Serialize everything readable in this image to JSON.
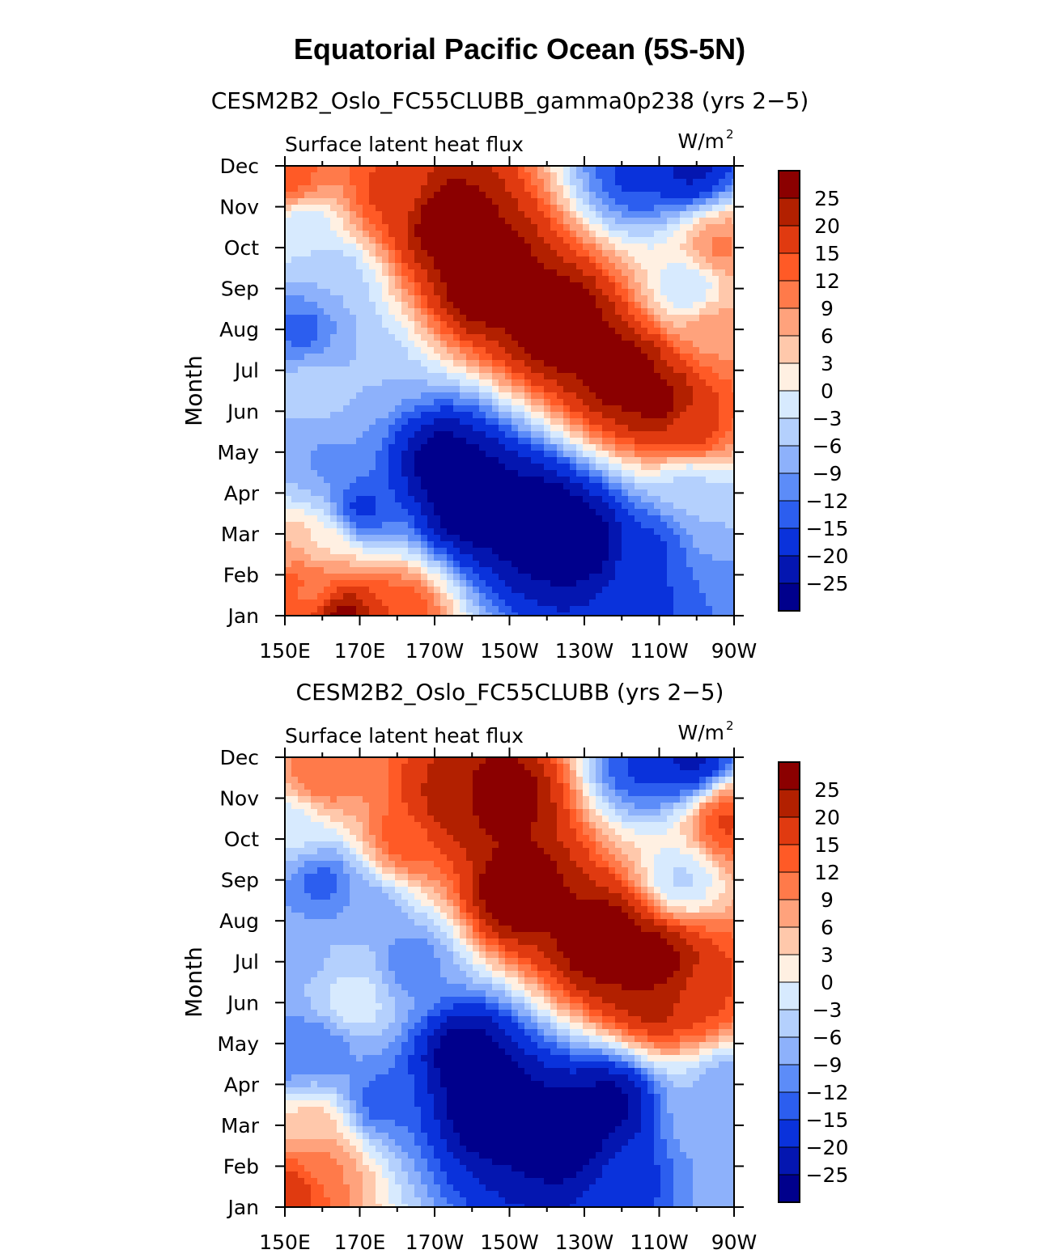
{
  "figure": {
    "title": "Equatorial Pacific Ocean (5S-5N)"
  },
  "colorbar": {
    "levels": [
      25,
      20,
      15,
      12,
      9,
      6,
      3,
      0,
      -3,
      -6,
      -9,
      -12,
      -15,
      -20,
      -25
    ],
    "colors": [
      "#8b0000",
      "#b22000",
      "#e03a10",
      "#ff5a26",
      "#ff7a4a",
      "#ffa27c",
      "#ffc8ab",
      "#fff0e2",
      "#d7eafe",
      "#b4d0fd",
      "#8db1fb",
      "#5c8cf8",
      "#2c5eef",
      "#0a32db",
      "#0416b0",
      "#00008c"
    ]
  },
  "chart_data": [
    {
      "type": "heatmap",
      "title": "CESM2B2_Oslo_FC55CLUBB_gamma0p238 (yrs 2−5)",
      "left_label": "Surface latent heat flux",
      "units": "W/m",
      "units_sup": "2",
      "ylabel": "Month",
      "xlabel": "",
      "x_ticks": [
        "150E",
        "170E",
        "170W",
        "150W",
        "130W",
        "110W",
        "90W"
      ],
      "y_ticks": [
        "Jan",
        "Feb",
        "Mar",
        "Apr",
        "May",
        "Jun",
        "Jul",
        "Aug",
        "Sep",
        "Oct",
        "Nov",
        "Dec"
      ],
      "x_range": [
        150,
        270
      ],
      "y_range": [
        1,
        12
      ],
      "features": [
        {
          "x": 165,
          "y": 1.0,
          "value": 30
        },
        {
          "x": 180,
          "y": 1.1,
          "value": 15
        },
        {
          "x": 153,
          "y": 1.9,
          "value": 14
        },
        {
          "x": 158,
          "y": 1.6,
          "value": 10
        },
        {
          "x": 152,
          "y": 2.6,
          "value": 6
        },
        {
          "x": 160,
          "y": 2.8,
          "value": 2
        },
        {
          "x": 200,
          "y": 3.8,
          "value": -34
        },
        {
          "x": 218,
          "y": 3.3,
          "value": -34
        },
        {
          "x": 230,
          "y": 2.8,
          "value": -32
        },
        {
          "x": 192,
          "y": 4.7,
          "value": -30
        },
        {
          "x": 170,
          "y": 3.6,
          "value": -17
        },
        {
          "x": 247,
          "y": 2.7,
          "value": -16
        },
        {
          "x": 245,
          "y": 1.2,
          "value": -17
        },
        {
          "x": 160,
          "y": 4.8,
          "value": -10
        },
        {
          "x": 150,
          "y": 4.8,
          "value": -7
        },
        {
          "x": 258,
          "y": 4.2,
          "value": -5
        },
        {
          "x": 268,
          "y": 3.3,
          "value": -6
        },
        {
          "x": 268,
          "y": 1.4,
          "value": -12
        },
        {
          "x": 204,
          "y": 9.2,
          "value": 34
        },
        {
          "x": 224,
          "y": 8.1,
          "value": 34
        },
        {
          "x": 240,
          "y": 6.9,
          "value": 32
        },
        {
          "x": 193,
          "y": 10.6,
          "value": 32
        },
        {
          "x": 250,
          "y": 6.2,
          "value": 28
        },
        {
          "x": 258,
          "y": 5.5,
          "value": 18
        },
        {
          "x": 178,
          "y": 11.3,
          "value": 16
        },
        {
          "x": 152,
          "y": 11.7,
          "value": 14
        },
        {
          "x": 264,
          "y": 8.0,
          "value": 8
        },
        {
          "x": 266,
          "y": 10.0,
          "value": 10
        },
        {
          "x": 258,
          "y": 9.0,
          "value": -4
        },
        {
          "x": 244,
          "y": 11.8,
          "value": -16
        },
        {
          "x": 258,
          "y": 12.0,
          "value": -22
        },
        {
          "x": 155,
          "y": 8.0,
          "value": -14
        },
        {
          "x": 163,
          "y": 9.2,
          "value": -6
        },
        {
          "x": 155,
          "y": 10.5,
          "value": -3
        },
        {
          "x": 158,
          "y": 6.6,
          "value": -4
        },
        {
          "x": 170,
          "y": 7.1,
          "value": -6
        }
      ]
    },
    {
      "type": "heatmap",
      "title": "CESM2B2_Oslo_FC55CLUBB (yrs 2−5)",
      "left_label": "Surface latent heat flux",
      "units": "W/m",
      "units_sup": "2",
      "ylabel": "Month",
      "xlabel": "",
      "x_ticks": [
        "150E",
        "170E",
        "170W",
        "150W",
        "130W",
        "110W",
        "90W"
      ],
      "y_ticks": [
        "Jan",
        "Feb",
        "Mar",
        "Apr",
        "May",
        "Jun",
        "Jul",
        "Aug",
        "Sep",
        "Oct",
        "Nov",
        "Dec"
      ],
      "x_range": [
        150,
        270
      ],
      "y_range": [
        1,
        12
      ],
      "features": [
        {
          "x": 153,
          "y": 1.5,
          "value": 18
        },
        {
          "x": 160,
          "y": 2.0,
          "value": 10
        },
        {
          "x": 158,
          "y": 3.0,
          "value": 5
        },
        {
          "x": 205,
          "y": 3.5,
          "value": -34
        },
        {
          "x": 225,
          "y": 2.8,
          "value": -32
        },
        {
          "x": 198,
          "y": 4.7,
          "value": -30
        },
        {
          "x": 237,
          "y": 3.5,
          "value": -28
        },
        {
          "x": 175,
          "y": 3.6,
          "value": -14
        },
        {
          "x": 160,
          "y": 4.9,
          "value": -12
        },
        {
          "x": 150,
          "y": 4.8,
          "value": -12
        },
        {
          "x": 245,
          "y": 1.6,
          "value": -16
        },
        {
          "x": 262,
          "y": 3.1,
          "value": -6
        },
        {
          "x": 268,
          "y": 4.0,
          "value": -8
        },
        {
          "x": 265,
          "y": 1.4,
          "value": -8
        },
        {
          "x": 212,
          "y": 8.7,
          "value": 34
        },
        {
          "x": 235,
          "y": 7.5,
          "value": 34
        },
        {
          "x": 248,
          "y": 6.9,
          "value": 32
        },
        {
          "x": 208,
          "y": 11.0,
          "value": 30
        },
        {
          "x": 195,
          "y": 10.9,
          "value": 24
        },
        {
          "x": 250,
          "y": 6.2,
          "value": 24
        },
        {
          "x": 260,
          "y": 6.0,
          "value": 16
        },
        {
          "x": 182,
          "y": 10.0,
          "value": 14
        },
        {
          "x": 160,
          "y": 11.5,
          "value": 12
        },
        {
          "x": 268,
          "y": 10.4,
          "value": 16
        },
        {
          "x": 256,
          "y": 9.0,
          "value": -4
        },
        {
          "x": 246,
          "y": 11.8,
          "value": -16
        },
        {
          "x": 258,
          "y": 12.0,
          "value": -22
        },
        {
          "x": 160,
          "y": 8.9,
          "value": -14
        },
        {
          "x": 183,
          "y": 7.0,
          "value": -12
        },
        {
          "x": 155,
          "y": 7.2,
          "value": -8
        },
        {
          "x": 172,
          "y": 8.2,
          "value": -9
        },
        {
          "x": 168,
          "y": 6.0,
          "value": 1
        },
        {
          "x": 168,
          "y": 6.7,
          "value": -3
        },
        {
          "x": 152,
          "y": 10.3,
          "value": -2
        }
      ]
    }
  ]
}
